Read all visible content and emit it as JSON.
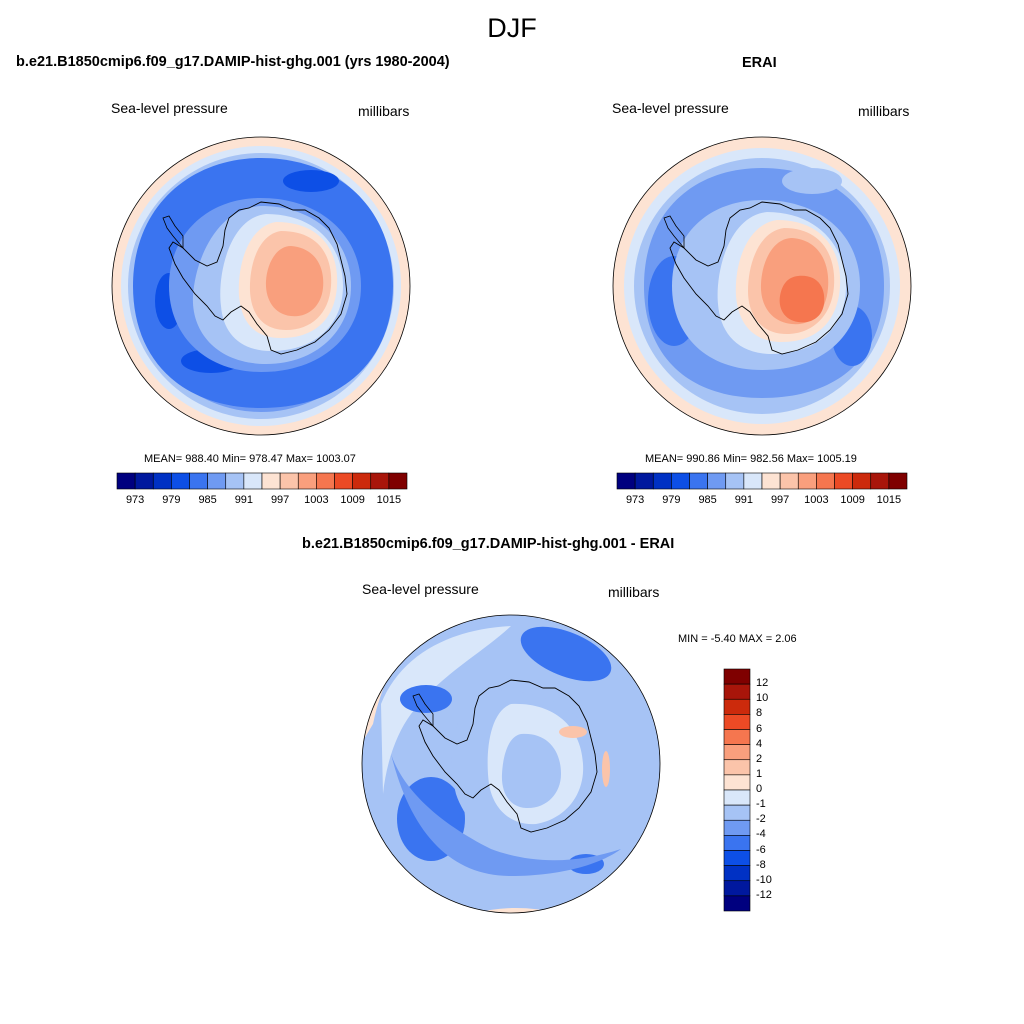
{
  "figure": {
    "season": "DJF"
  },
  "colors": {
    "scale": [
      "#00007f",
      "#00189e",
      "#0031c4",
      "#0d4fe6",
      "#3a74f0",
      "#6f9af2",
      "#a6c3f5",
      "#d9e7fa",
      "#fde3d3",
      "#fbc4aa",
      "#f99f7d",
      "#f5764f",
      "#ec4a25",
      "#cc2a0c",
      "#a8150a",
      "#7f0000"
    ],
    "coast": "#000000"
  },
  "panels": [
    {
      "id": "model",
      "title": "b.e21.B1850cmip6.f09_g17.DAMIP-hist-ghg.001 (yrs 1980-2004)",
      "left_label": "Sea-level pressure",
      "right_label": "millibars",
      "stats": "MEAN= 988.40  Min= 978.47  Max= 1003.07",
      "colorbar_labels": [
        "973",
        "979",
        "985",
        "991",
        "997",
        "1003",
        "1009",
        "1015"
      ]
    },
    {
      "id": "obs",
      "title": "ERAI",
      "left_label": "Sea-level pressure",
      "right_label": "millibars",
      "stats": "MEAN= 990.86  Min= 982.56  Max= 1005.19",
      "colorbar_labels": [
        "973",
        "979",
        "985",
        "991",
        "997",
        "1003",
        "1009",
        "1015"
      ]
    },
    {
      "id": "diff",
      "title": "b.e21.B1850cmip6.f09_g17.DAMIP-hist-ghg.001 - ERAI",
      "left_label": "Sea-level pressure",
      "right_label": "millibars",
      "stats": "MIN =  -5.40 MAX =   2.06",
      "colorbar_labels": [
        "12",
        "10",
        "8",
        "6",
        "4",
        "2",
        "1",
        "0",
        "-1",
        "-2",
        "-4",
        "-6",
        "-8",
        "-10",
        "-12"
      ]
    }
  ]
}
